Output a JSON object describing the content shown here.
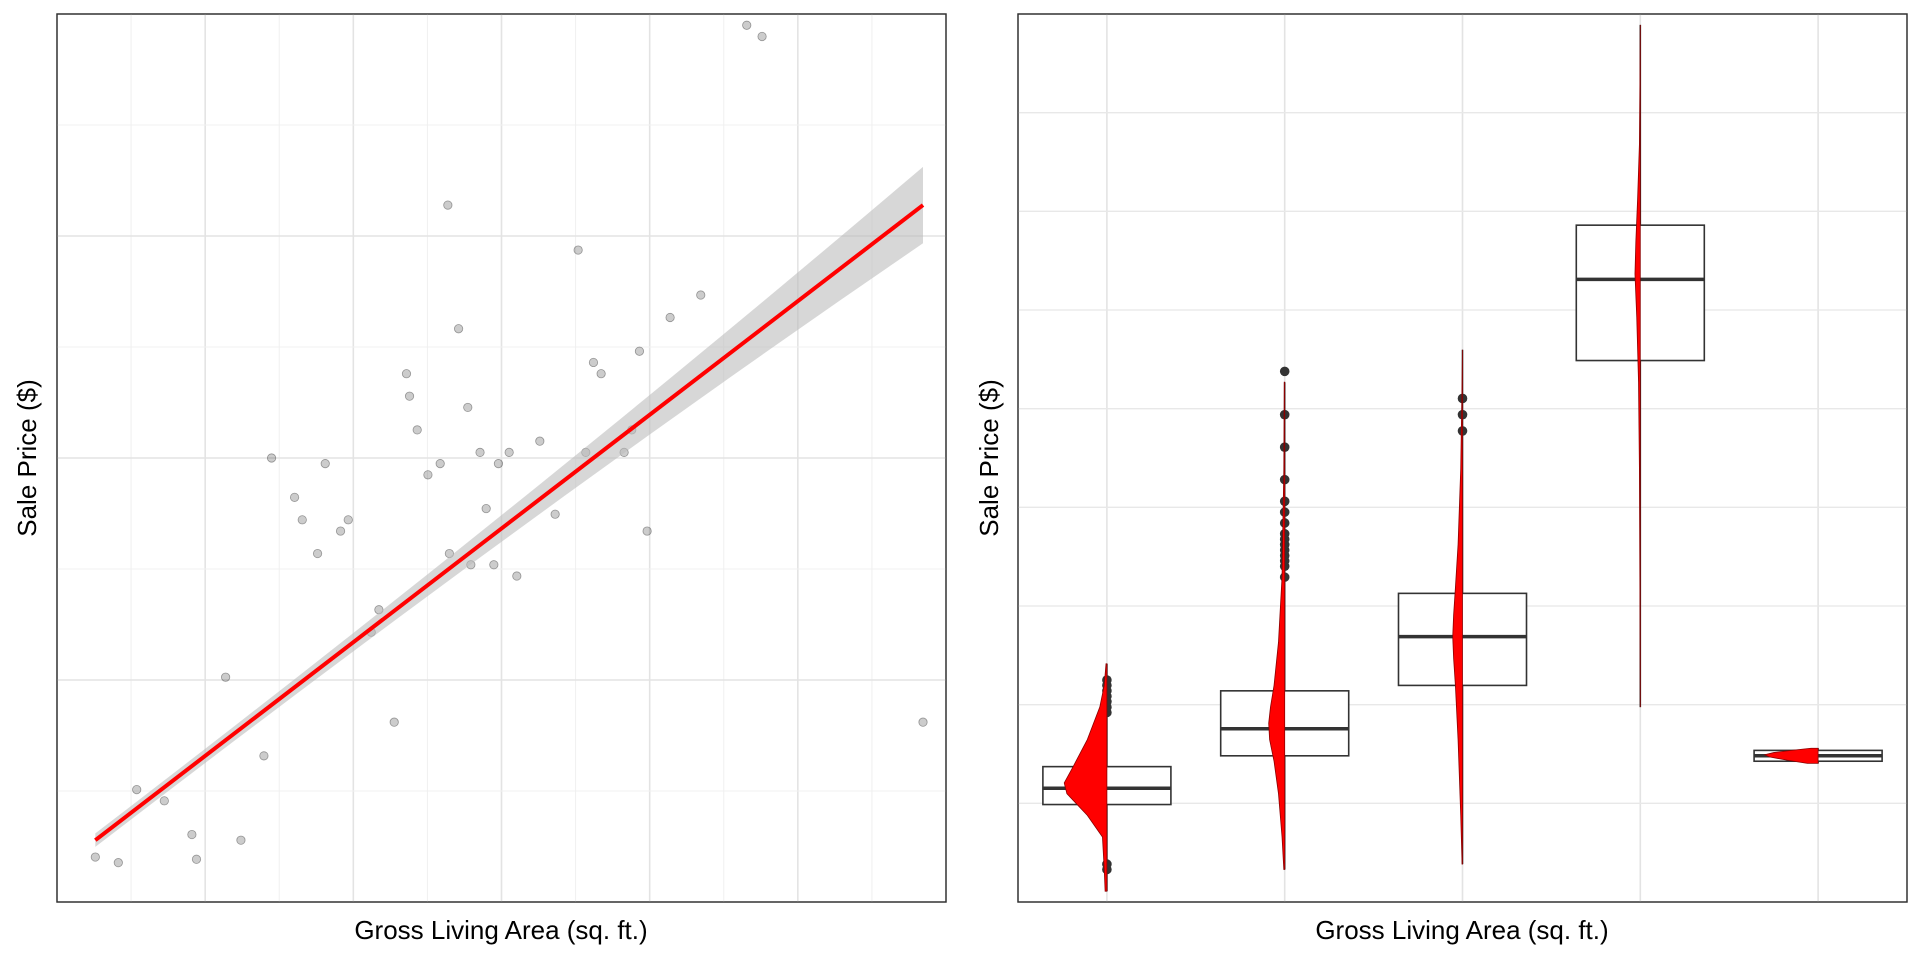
{
  "chart_data": [
    {
      "type": "scatter",
      "title": "",
      "xlabel": "Gross Living Area (sq. ft.)",
      "ylabel": "Sale Price ($)",
      "xlim": [
        0,
        5800
      ],
      "ylim": [
        0,
        790
      ],
      "grid": true,
      "tick_labels_visible": false,
      "series": [
        {
          "kind": "points",
          "color": "#000000",
          "opacity": 0.2,
          "x": [
            250,
            400,
            520,
            700,
            880,
            910,
            1100,
            1200,
            1350,
            1400,
            1550,
            1600,
            1700,
            1750,
            1850,
            2100,
            2200,
            2280,
            2350,
            2420,
            2500,
            2560,
            2620,
            2680,
            2760,
            2800,
            2850,
            2880,
            2950,
            3000,
            3150,
            3250,
            3400,
            3450,
            3500,
            3550,
            3700,
            3750,
            3800,
            3850,
            4000,
            4200,
            4500,
            4600,
            5650,
            2300,
            2550,
            2700,
            1900,
            2050
          ],
          "y": [
            40,
            35,
            100,
            90,
            60,
            38,
            200,
            55,
            130,
            395,
            360,
            340,
            310,
            390,
            330,
            260,
            160,
            470,
            420,
            380,
            390,
            310,
            510,
            440,
            400,
            350,
            300,
            390,
            400,
            290,
            410,
            345,
            580,
            400,
            480,
            470,
            400,
            420,
            490,
            330,
            520,
            540,
            780,
            770,
            160,
            450,
            620,
            300,
            340,
            240
          ]
        },
        {
          "kind": "regression-line",
          "color": "#ff0000",
          "x": [
            250,
            5650
          ],
          "y": [
            55,
            620
          ]
        }
      ]
    },
    {
      "type": "box",
      "title": "",
      "xlabel": "Gross Living Area (sq. ft.)",
      "ylabel": "Sale Price ($)",
      "ylim": [
        0,
        820
      ],
      "grid": true,
      "tick_labels_visible": false,
      "box_fill": "#ffffff",
      "density_fill": "#ff0000",
      "boxes": [
        {
          "q1": 90,
          "median": 105,
          "q3": 125,
          "whisker_low": 10,
          "whisker_high": 220,
          "outliers": [
            30,
            35,
            175,
            180,
            185,
            190,
            195,
            200,
            205
          ]
        },
        {
          "q1": 135,
          "median": 160,
          "q3": 195,
          "whisker_low": 30,
          "whisker_high": 480,
          "outliers": [
            300,
            310,
            315,
            320,
            325,
            330,
            335,
            340,
            350,
            360,
            370,
            390,
            420,
            450,
            490
          ]
        },
        {
          "q1": 200,
          "median": 245,
          "q3": 285,
          "whisker_low": 35,
          "whisker_high": 510,
          "outliers": [
            435,
            450,
            465
          ]
        },
        {
          "q1": 500,
          "median": 575,
          "q3": 625,
          "whisker_low": 180,
          "whisker_high": 810,
          "outliers": []
        },
        {
          "q1": 130,
          "median": 135,
          "q3": 140,
          "whisker_low": 128,
          "whisker_high": 142,
          "outliers": []
        }
      ],
      "densities": [
        {
          "ys": [
            10,
            30,
            60,
            80,
            100,
            110,
            125,
            150,
            180,
            200,
            220
          ],
          "widths": [
            0.02,
            0.03,
            0.05,
            0.22,
            0.45,
            0.48,
            0.38,
            0.22,
            0.08,
            0.03,
            0.01
          ]
        },
        {
          "ys": [
            30,
            60,
            100,
            130,
            150,
            165,
            180,
            200,
            240,
            300,
            400,
            480
          ],
          "widths": [
            0.01,
            0.03,
            0.07,
            0.12,
            0.17,
            0.18,
            0.16,
            0.12,
            0.07,
            0.03,
            0.01,
            0.005
          ]
        },
        {
          "ys": [
            35,
            80,
            150,
            200,
            225,
            245,
            265,
            290,
            330,
            400,
            480,
            510
          ],
          "widths": [
            0.005,
            0.02,
            0.05,
            0.08,
            0.1,
            0.11,
            0.1,
            0.08,
            0.05,
            0.02,
            0.005,
            0.0
          ]
        },
        {
          "ys": [
            180,
            300,
            400,
            480,
            540,
            580,
            610,
            650,
            700,
            760,
            810
          ],
          "widths": [
            0.0,
            0.005,
            0.01,
            0.02,
            0.04,
            0.06,
            0.05,
            0.03,
            0.01,
            0.004,
            0.0
          ]
        },
        {
          "ys": [
            128,
            131,
            134,
            136,
            138,
            140,
            142
          ],
          "widths": [
            0.12,
            0.35,
            0.55,
            0.6,
            0.5,
            0.3,
            0.08
          ]
        }
      ]
    }
  ]
}
